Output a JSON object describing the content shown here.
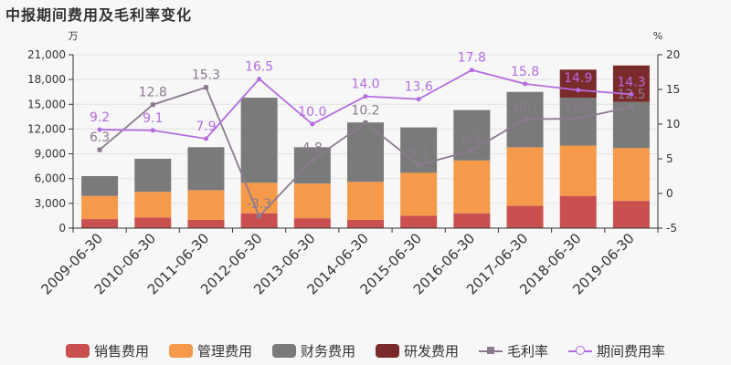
{
  "title": "中报期间费用及毛利率变化",
  "chart_data": {
    "type": "bar",
    "left_unit": "万",
    "right_unit": "%",
    "categories": [
      "2009-06-30",
      "2010-06-30",
      "2011-06-30",
      "2012-06-30",
      "2013-06-30",
      "2014-06-30",
      "2015-06-30",
      "2016-06-30",
      "2017-06-30",
      "2018-06-30",
      "2019-06-30"
    ],
    "left_ylim": [
      0,
      21000
    ],
    "left_ticks": [
      0,
      3000,
      6000,
      9000,
      12000,
      15000,
      18000,
      21000
    ],
    "left_tick_labels": [
      "0",
      "3,000",
      "6,000",
      "9,000",
      "12,000",
      "15,000",
      "18,000",
      "21,000"
    ],
    "right_ylim": [
      -5,
      20
    ],
    "right_ticks": [
      -5,
      0,
      5,
      10,
      15,
      20
    ],
    "stacked_series": [
      {
        "name": "销售费用",
        "color": "#c9504f",
        "values": [
          1100,
          1300,
          1000,
          1800,
          1200,
          1000,
          1500,
          1800,
          2700,
          3900,
          3300
        ]
      },
      {
        "name": "管理费用",
        "color": "#f59a4a",
        "values": [
          2800,
          3100,
          3600,
          3700,
          4200,
          4600,
          5200,
          6400,
          7100,
          6100,
          6400
        ]
      },
      {
        "name": "财务费用",
        "color": "#7a7a7a",
        "values": [
          2400,
          4000,
          5200,
          10300,
          4400,
          7200,
          5500,
          6100,
          6700,
          5800,
          5600
        ]
      },
      {
        "name": "研发费用",
        "color": "#7b2a2a",
        "values": [
          0,
          0,
          0,
          0,
          0,
          0,
          0,
          0,
          0,
          3400,
          4400
        ]
      }
    ],
    "line_series": [
      {
        "name": "毛利率",
        "color": "#8b7a8f",
        "marker": "square",
        "values": [
          6.3,
          12.8,
          15.3,
          -3.3,
          4.8,
          10.2,
          4.1,
          6.2,
          10.7,
          10.8,
          12.5
        ],
        "labels": [
          "6.3",
          "12.8",
          "15.3",
          "-3.3",
          "4.8",
          "10.2",
          "4.1",
          "6.2",
          "10.7",
          "10.8",
          "12.5"
        ]
      },
      {
        "name": "期间费用率",
        "color": "#b46ce0",
        "marker": "circle",
        "values": [
          9.2,
          9.1,
          7.9,
          16.5,
          10.0,
          14.0,
          13.6,
          17.8,
          15.8,
          14.9,
          14.3
        ],
        "labels": [
          "9.2",
          "9.1",
          "7.9",
          "16.5",
          "10.0",
          "14.0",
          "13.6",
          "17.8",
          "15.8",
          "14.9",
          "14.3"
        ]
      }
    ],
    "grid": true,
    "legend_position": "bottom"
  }
}
